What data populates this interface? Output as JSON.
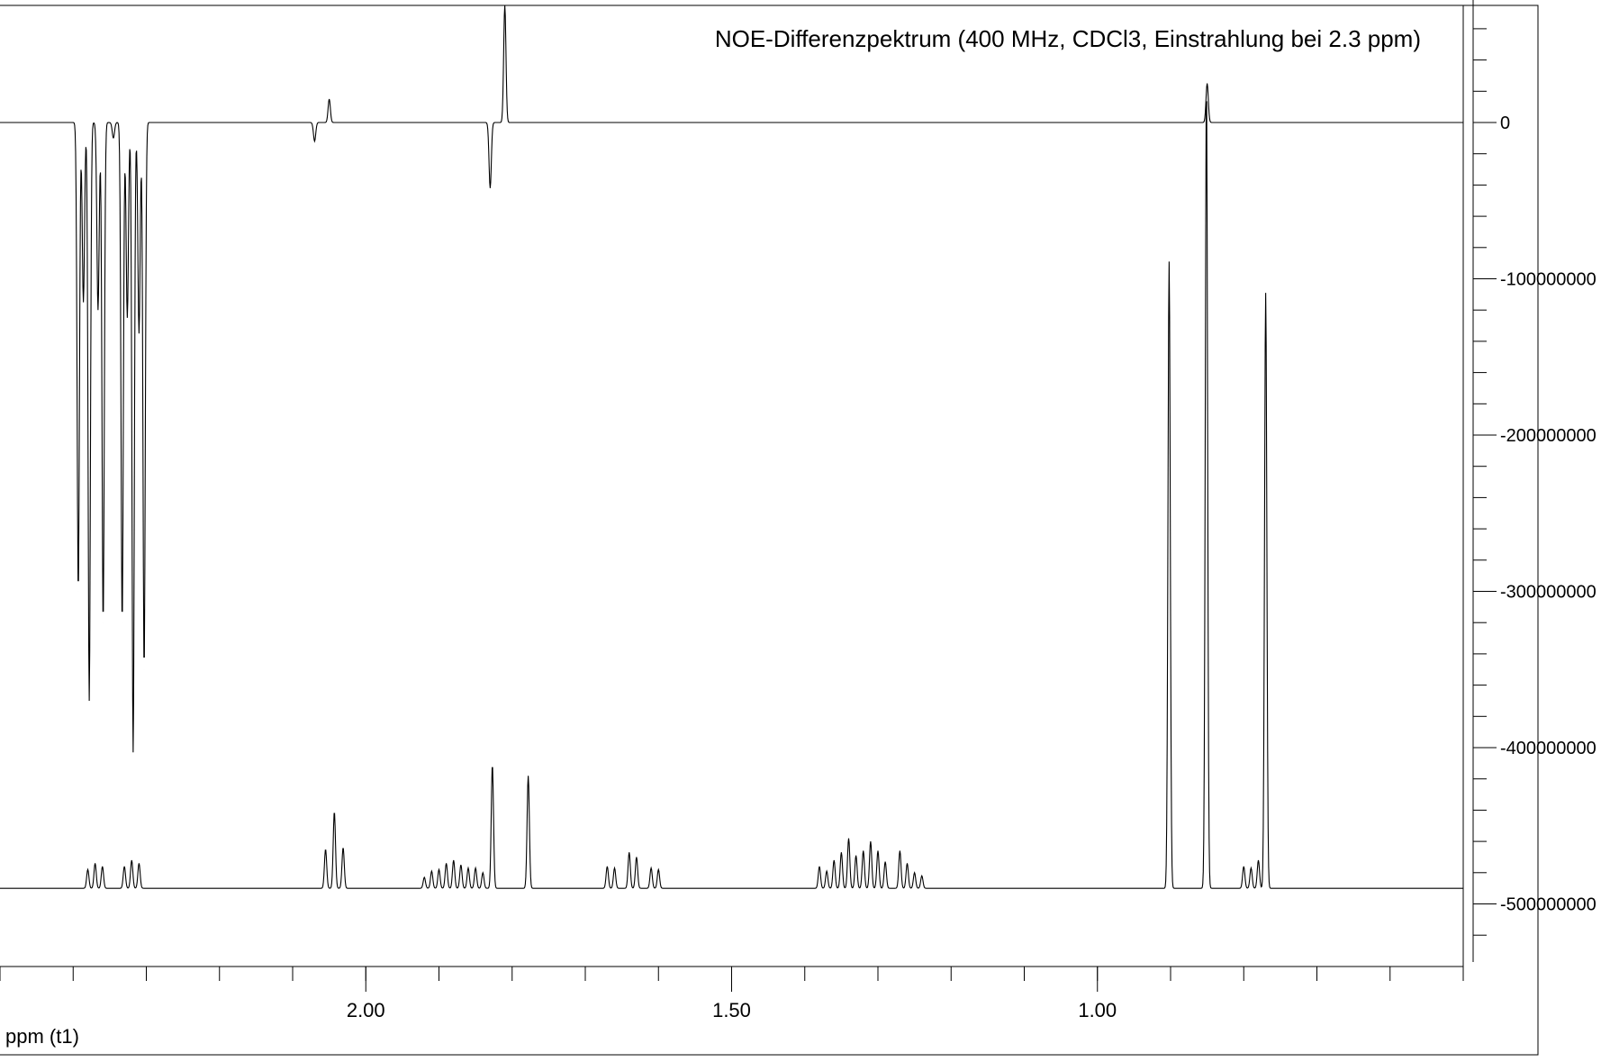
{
  "chart_data": {
    "type": "line",
    "title": "NOE-Differenzpektrum (400 MHz, CDCl3, Einstrahlung bei 2.3 ppm)",
    "xlabel": "ppm (t1)",
    "x_reversed": true,
    "xlim": [
      2.5,
      0.5
    ],
    "x_ticks": [
      2.0,
      1.5,
      1.0
    ],
    "x_tick_labels": [
      "2.00",
      "1.50",
      "1.00"
    ],
    "ylim": [
      -550000000,
      80000000
    ],
    "y_ticks": [
      0,
      -100000000,
      -200000000,
      -300000000,
      -400000000,
      -500000000
    ],
    "y_tick_labels": [
      "0",
      "-100000000",
      "-200000000",
      "-300000000",
      "-400000000",
      "-500000000"
    ],
    "grid": false,
    "series": [
      {
        "description": "NOE difference spectrum (upper trace, baseline 0)",
        "baseline": 0,
        "peaks": [
          {
            "x": 2.393,
            "y": -300000000
          },
          {
            "x": 2.386,
            "y": -115000000
          },
          {
            "x": 2.378,
            "y": -370000000
          },
          {
            "x": 2.366,
            "y": -120000000
          },
          {
            "x": 2.359,
            "y": -320000000
          },
          {
            "x": 2.345,
            "y": -10000000
          },
          {
            "x": 2.333,
            "y": -320000000
          },
          {
            "x": 2.326,
            "y": -125000000
          },
          {
            "x": 2.318,
            "y": -403000000
          },
          {
            "x": 2.31,
            "y": -135000000
          },
          {
            "x": 2.303,
            "y": -350000000
          },
          {
            "x": 2.07,
            "y": -12000000
          },
          {
            "x": 2.05,
            "y": 15000000
          },
          {
            "x": 1.83,
            "y": -42000000
          },
          {
            "x": 1.81,
            "y": 75000000
          },
          {
            "x": 0.85,
            "y": 25000000
          }
        ]
      },
      {
        "description": "reference 1H spectrum (lower trace, baseline -490000000)",
        "baseline": -490000000,
        "peaks": [
          {
            "x": 2.38,
            "y": -478000000
          },
          {
            "x": 2.37,
            "y": -474000000
          },
          {
            "x": 2.36,
            "y": -476000000
          },
          {
            "x": 2.33,
            "y": -476000000
          },
          {
            "x": 2.32,
            "y": -472000000
          },
          {
            "x": 2.31,
            "y": -474000000
          },
          {
            "x": 2.055,
            "y": -465000000
          },
          {
            "x": 2.043,
            "y": -441000000
          },
          {
            "x": 2.031,
            "y": -464000000
          },
          {
            "x": 1.92,
            "y": -483000000
          },
          {
            "x": 1.91,
            "y": -479000000
          },
          {
            "x": 1.9,
            "y": -478000000
          },
          {
            "x": 1.89,
            "y": -474000000
          },
          {
            "x": 1.88,
            "y": -472000000
          },
          {
            "x": 1.87,
            "y": -475000000
          },
          {
            "x": 1.86,
            "y": -477000000
          },
          {
            "x": 1.85,
            "y": -477000000
          },
          {
            "x": 1.84,
            "y": -480000000
          },
          {
            "x": 1.827,
            "y": -411000000
          },
          {
            "x": 1.778,
            "y": -418000000
          },
          {
            "x": 1.67,
            "y": -476000000
          },
          {
            "x": 1.66,
            "y": -477000000
          },
          {
            "x": 1.64,
            "y": -467000000
          },
          {
            "x": 1.63,
            "y": -470000000
          },
          {
            "x": 1.61,
            "y": -477000000
          },
          {
            "x": 1.6,
            "y": -478000000
          },
          {
            "x": 1.38,
            "y": -476000000
          },
          {
            "x": 1.37,
            "y": -479000000
          },
          {
            "x": 1.36,
            "y": -472000000
          },
          {
            "x": 1.35,
            "y": -467000000
          },
          {
            "x": 1.34,
            "y": -458000000
          },
          {
            "x": 1.33,
            "y": -469000000
          },
          {
            "x": 1.32,
            "y": -466000000
          },
          {
            "x": 1.31,
            "y": -460000000
          },
          {
            "x": 1.3,
            "y": -466000000
          },
          {
            "x": 1.29,
            "y": -473000000
          },
          {
            "x": 1.27,
            "y": -466000000
          },
          {
            "x": 1.26,
            "y": -474000000
          },
          {
            "x": 1.25,
            "y": -480000000
          },
          {
            "x": 1.24,
            "y": -482000000
          },
          {
            "x": 0.902,
            "y": -89000000
          },
          {
            "x": 0.851,
            "y": 25000000
          },
          {
            "x": 0.8,
            "y": -476000000
          },
          {
            "x": 0.79,
            "y": -477000000
          },
          {
            "x": 0.78,
            "y": -472000000
          },
          {
            "x": 0.77,
            "y": -109000000
          }
        ]
      }
    ]
  }
}
